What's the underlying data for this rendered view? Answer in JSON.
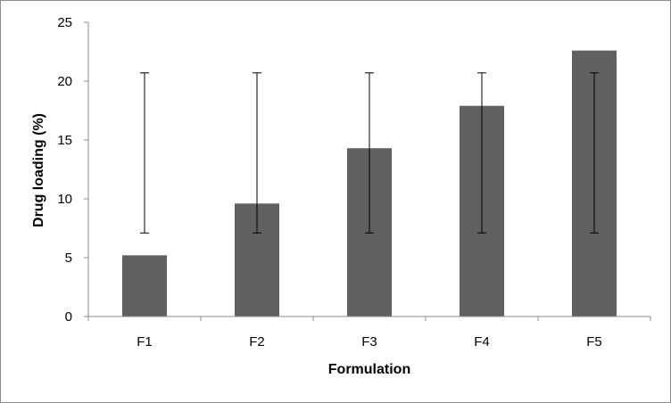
{
  "chart_data": {
    "type": "bar",
    "categories": [
      "F1",
      "F2",
      "F3",
      "F4",
      "F5"
    ],
    "values": [
      5.2,
      9.6,
      14.3,
      17.9,
      22.6
    ],
    "error_bars": [
      {
        "low": 7.1,
        "high": 20.7
      },
      {
        "low": 7.1,
        "high": 20.7
      },
      {
        "low": 7.1,
        "high": 20.7
      },
      {
        "low": 7.1,
        "high": 20.7
      },
      {
        "low": 7.1,
        "high": 20.7
      }
    ],
    "title": "",
    "xlabel": "Formulation",
    "ylabel": "Drug loading (%)",
    "ylim": [
      0,
      25
    ],
    "yticks": [
      0,
      5,
      10,
      15,
      20,
      25
    ],
    "grid": false,
    "legend": "none",
    "bar_color": "#606060"
  }
}
